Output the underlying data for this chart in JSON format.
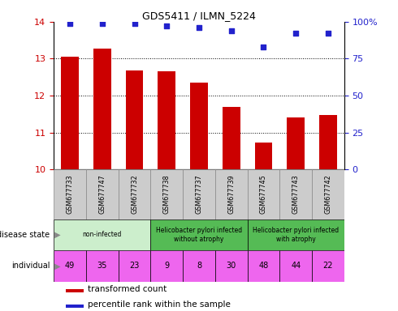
{
  "title": "GDS5411 / ILMN_5224",
  "samples": [
    "GSM677733",
    "GSM677747",
    "GSM677732",
    "GSM677738",
    "GSM677737",
    "GSM677739",
    "GSM677745",
    "GSM677743",
    "GSM677742"
  ],
  "transformed_count": [
    13.05,
    13.28,
    12.68,
    12.67,
    12.35,
    11.7,
    10.72,
    11.42,
    11.48
  ],
  "percentile_rank": [
    99,
    99,
    99,
    97,
    96,
    94,
    83,
    92,
    92
  ],
  "ylim_left": [
    10,
    14
  ],
  "ylim_right": [
    0,
    100
  ],
  "yticks_left": [
    10,
    11,
    12,
    13,
    14
  ],
  "yticks_right": [
    0,
    25,
    50,
    75,
    100
  ],
  "ytick_labels_right": [
    "0",
    "25",
    "50",
    "75",
    "100%"
  ],
  "bar_color": "#cc0000",
  "scatter_color": "#2222cc",
  "group_defs": [
    {
      "start": 0,
      "end": 3,
      "color": "#cceecc",
      "label": "non-infected"
    },
    {
      "start": 3,
      "end": 6,
      "color": "#55bb55",
      "label": "Helicobacter pylori infected\nwithout atrophy"
    },
    {
      "start": 6,
      "end": 9,
      "color": "#55bb55",
      "label": "Helicobacter pylori infected\nwith atrophy"
    }
  ],
  "individual_values": [
    49,
    35,
    23,
    9,
    8,
    30,
    48,
    44,
    22
  ],
  "individual_color": "#ee66ee",
  "disease_state_label": "disease state",
  "individual_label": "individual",
  "legend_bar_label": "transformed count",
  "legend_scatter_label": "percentile rank within the sample",
  "grid_dotted_color": "#000000",
  "background_color": "#ffffff",
  "tick_label_color_left": "#cc0000",
  "tick_label_color_right": "#2222cc",
  "sample_box_color": "#cccccc",
  "sample_box_edge": "#888888"
}
